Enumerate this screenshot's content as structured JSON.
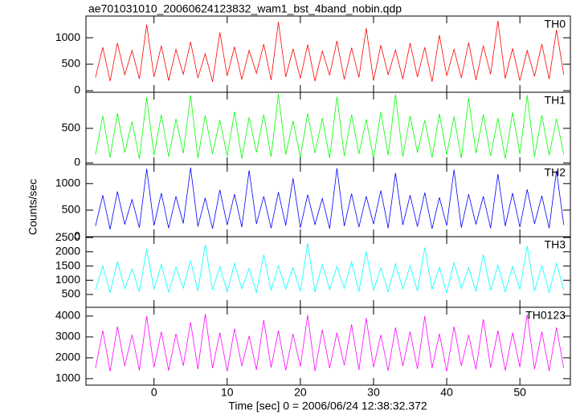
{
  "chart_data": {
    "type": "line",
    "title": "ae701031010_20060624123832_wam1_bst_4band_nobin.qdp",
    "xlabel": "Time [sec] 0 = 2006/06/24 12:38:32.372",
    "ylabel": "Counts/sec",
    "xlim": [
      -9.3,
      56.9
    ],
    "xticks": [
      0,
      10,
      20,
      30,
      40,
      50
    ],
    "x": [
      -8,
      -7,
      -6,
      -5,
      -4,
      -3,
      -2,
      -1,
      0,
      1,
      2,
      3,
      4,
      5,
      6,
      7,
      8,
      9,
      10,
      11,
      12,
      13,
      14,
      15,
      16,
      17,
      18,
      19,
      20,
      21,
      22,
      23,
      24,
      25,
      26,
      27,
      28,
      29,
      30,
      31,
      32,
      33,
      34,
      35,
      36,
      37,
      38,
      39,
      40,
      41,
      42,
      43,
      44,
      45,
      46,
      47,
      48,
      49,
      50,
      51,
      52,
      53,
      54,
      55,
      56
    ],
    "series": [
      {
        "name": "TH0",
        "color": "#ff0000",
        "ylim": [
          -30,
          1410
        ],
        "yticks": [
          0,
          500,
          1000
        ],
        "values": [
          250,
          820,
          180,
          900,
          300,
          760,
          220,
          1250,
          260,
          850,
          190,
          780,
          310,
          920,
          240,
          700,
          170,
          1100,
          280,
          830,
          210,
          760,
          330,
          880,
          200,
          1300,
          260,
          790,
          230,
          870,
          180,
          750,
          290,
          940,
          210,
          810,
          250,
          1180,
          190,
          860,
          300,
          770,
          220,
          900,
          260,
          820,
          170,
          1050,
          280,
          780,
          240,
          910,
          200,
          850,
          310,
          1320,
          230,
          800,
          190,
          760,
          270,
          880,
          220,
          1150,
          300
        ]
      },
      {
        "name": "TH1",
        "color": "#00ff00",
        "ylim": [
          -23,
          1023
        ],
        "yticks": [
          0,
          500
        ],
        "values": [
          120,
          680,
          80,
          720,
          150,
          600,
          60,
          950,
          110,
          700,
          90,
          640,
          140,
          980,
          70,
          690,
          130,
          620,
          100,
          740,
          60,
          660,
          150,
          700,
          90,
          1000,
          120,
          610,
          80,
          720,
          140,
          650,
          70,
          960,
          100,
          700,
          130,
          630,
          60,
          740,
          110,
          990,
          90,
          680,
          150,
          620,
          80,
          710,
          120,
          670,
          70,
          940,
          140,
          700,
          100,
          650,
          60,
          730,
          130,
          980,
          90,
          690,
          110,
          640,
          120
        ]
      },
      {
        "name": "TH2",
        "color": "#0000ff",
        "ylim": [
          0,
          1360
        ],
        "yticks": [
          0,
          500,
          1000
        ],
        "values": [
          200,
          780,
          140,
          850,
          230,
          700,
          170,
          1280,
          210,
          820,
          160,
          760,
          250,
          1300,
          190,
          730,
          150,
          880,
          220,
          800,
          180,
          1250,
          240,
          760,
          160,
          840,
          210,
          1100,
          170,
          790,
          230,
          720,
          150,
          1290,
          200,
          810,
          180,
          760,
          240,
          870,
          160,
          1200,
          220,
          780,
          190,
          830,
          150,
          740,
          210,
          1260,
          170,
          800,
          230,
          760,
          160,
          1180,
          200,
          820,
          180,
          890,
          240,
          770,
          160,
          1240,
          220
        ]
      },
      {
        "name": "TH3",
        "color": "#00ffff",
        "ylim": [
          50,
          2530
        ],
        "yticks": [
          500,
          1000,
          1500,
          2000,
          2500
        ],
        "values": [
          650,
          1500,
          560,
          1650,
          700,
          1400,
          600,
          2100,
          680,
          1550,
          580,
          1450,
          720,
          1700,
          620,
          2250,
          660,
          1480,
          590,
          1600,
          700,
          1420,
          560,
          1900,
          640,
          1520,
          690,
          1450,
          610,
          2300,
          580,
          1560,
          670,
          1480,
          720,
          1650,
          600,
          2000,
          650,
          1430,
          590,
          1580,
          700,
          1500,
          620,
          2150,
          680,
          1460,
          560,
          1620,
          710,
          1440,
          600,
          1900,
          650,
          1530,
          590,
          1480,
          680,
          2200,
          620,
          1510,
          570,
          1600,
          660
        ]
      },
      {
        "name": "TH0123",
        "color": "#ff00ff",
        "ylim": [
          690,
          4420
        ],
        "yticks": [
          1000,
          2000,
          3000,
          4000
        ],
        "values": [
          1500,
          3300,
          1350,
          3500,
          1600,
          3100,
          1400,
          4000,
          1550,
          3250,
          1380,
          3150,
          1620,
          3700,
          1450,
          4100,
          1500,
          3200,
          1350,
          3400,
          1600,
          3050,
          1420,
          3800,
          1530,
          3300,
          1400,
          3150,
          1580,
          4050,
          1360,
          3350,
          1500,
          3200,
          1640,
          3600,
          1420,
          3900,
          1550,
          3100,
          1380,
          3450,
          1600,
          3250,
          1470,
          4000,
          1520,
          3150,
          1350,
          3500,
          1610,
          3100,
          1440,
          3850,
          1530,
          3300,
          1390,
          3200,
          1560,
          4080,
          1450,
          3250,
          1370,
          3450,
          1500
        ]
      }
    ]
  }
}
